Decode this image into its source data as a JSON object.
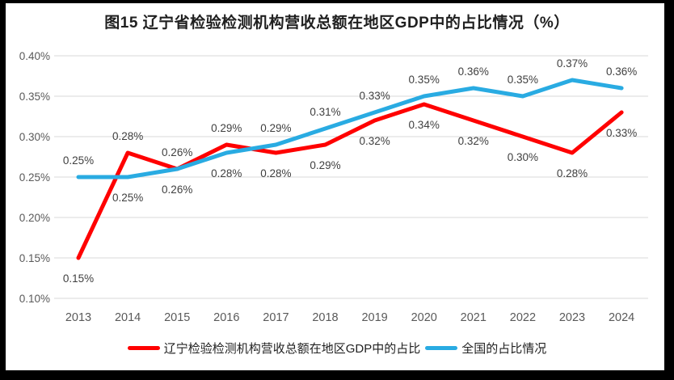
{
  "chart_data": {
    "type": "line",
    "title": "图15 辽宁省检验检测机构营收总额在地区GDP中的占比情况（%）",
    "categories": [
      "2013",
      "2014",
      "2015",
      "2016",
      "2017",
      "2018",
      "2019",
      "2020",
      "2021",
      "2022",
      "2023",
      "2024"
    ],
    "series": [
      {
        "name": "辽宁检验检测机构营收总额在地区GDP中的占比",
        "color": "#FF0000",
        "values": [
          0.15,
          0.28,
          0.26,
          0.29,
          0.28,
          0.29,
          0.32,
          0.34,
          0.32,
          0.3,
          0.28,
          0.33
        ],
        "labels": [
          "0.15%",
          "0.28%",
          "0.26%",
          "0.29%",
          "0.28%",
          "0.29%",
          "0.32%",
          "0.34%",
          "0.32%",
          "0.30%",
          "0.28%",
          "0.33%"
        ]
      },
      {
        "name": "全国的占比情况",
        "color": "#29ABE2",
        "values": [
          0.25,
          0.25,
          0.26,
          0.28,
          0.29,
          0.31,
          0.33,
          0.35,
          0.36,
          0.35,
          0.37,
          0.36
        ],
        "labels": [
          "0.25%",
          "0.25%",
          "0.26%",
          "0.28%",
          "0.29%",
          "0.31%",
          "0.33%",
          "0.35%",
          "0.36%",
          "0.35%",
          "0.37%",
          "0.36%"
        ]
      }
    ],
    "y_axis": {
      "min": 0.1,
      "max": 0.4,
      "step": 0.05,
      "tick_values": [
        0.4,
        0.35,
        0.3,
        0.25,
        0.2,
        0.15,
        0.1
      ],
      "tick_labels": [
        "0.40%",
        "0.35%",
        "0.30%",
        "0.25%",
        "0.20%",
        "0.15%",
        "0.10%"
      ]
    },
    "xlabel": "",
    "ylabel": "",
    "grid": true,
    "legend_position": "bottom"
  },
  "styles": {
    "red": "#FF0000",
    "blue": "#29ABE2",
    "gridline": "#D9D9D9",
    "axis_text": "#595959",
    "data_label": "#3F3F3F",
    "title_color": "#1F1F1F",
    "frame": "#000000",
    "background": "#FFFFFF"
  }
}
